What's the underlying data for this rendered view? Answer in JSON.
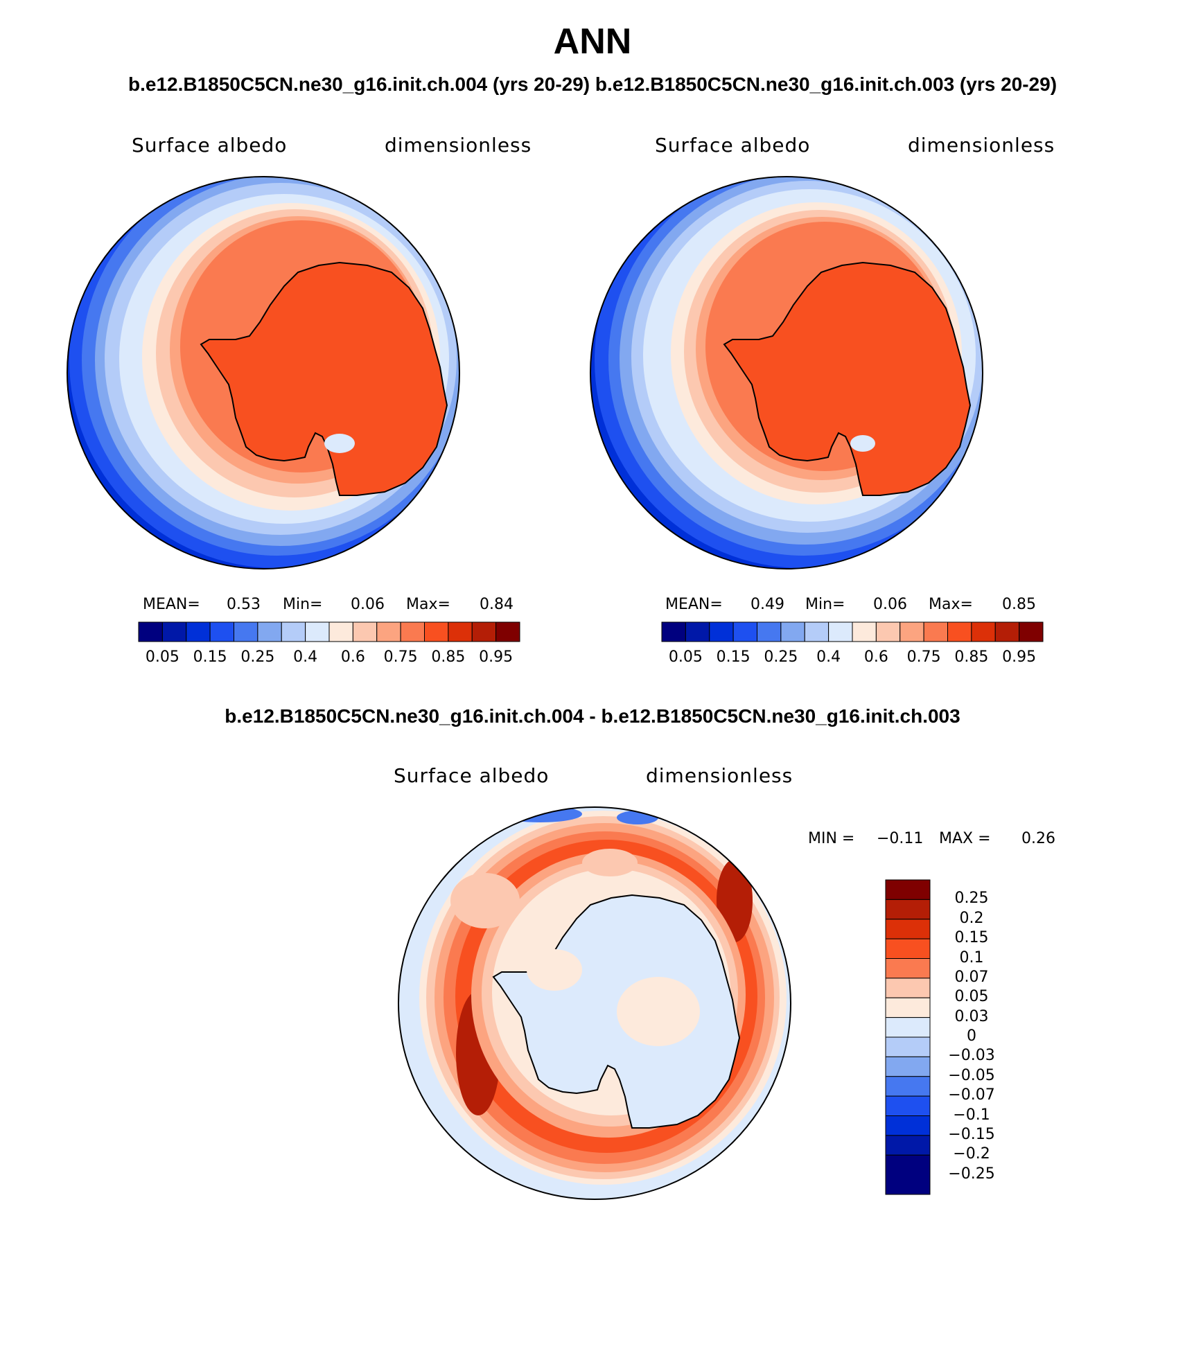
{
  "title": "ANN",
  "subtitle_left": "b.e12.B1850C5CN.ne30_g16.init.ch.004 (yrs 20-29)",
  "subtitle_right": "b.e12.B1850C5CN.ne30_g16.init.ch.003 (yrs 20-29)",
  "diff_title": "b.e12.B1850C5CN.ne30_g16.init.ch.004 - b.e12.B1850C5CN.ne30_g16.init.ch.003",
  "panels": [
    {
      "variable": "Surface albedo",
      "units": "dimensionless",
      "stats": {
        "mean_label": "MEAN=",
        "mean": "0.53",
        "min_label": "Min=",
        "min": "0.06",
        "max_label": "Max=",
        "max": "0.84"
      }
    },
    {
      "variable": "Surface albedo",
      "units": "dimensionless",
      "stats": {
        "mean_label": "MEAN=",
        "mean": "0.49",
        "min_label": "Min=",
        "min": "0.06",
        "max_label": "Max=",
        "max": "0.85"
      }
    },
    {
      "variable": "Surface albedo",
      "units": "dimensionless",
      "stats": {
        "min_label": "MIN =",
        "min": "−0.11",
        "max_label": "MAX =",
        "max": "0.26"
      }
    }
  ],
  "colorbar_main": {
    "colors": [
      "#00007f",
      "#0018a8",
      "#0030d8",
      "#1e50f0",
      "#4678f0",
      "#82a8f0",
      "#b4ccf8",
      "#dceafc",
      "#fdeadc",
      "#fcc8b0",
      "#fca480",
      "#fa7a50",
      "#f85020",
      "#dc3008",
      "#b41e06",
      "#7f0000"
    ],
    "ticks": [
      "0.05",
      "0.15",
      "0.25",
      "0.4",
      "0.6",
      "0.75",
      "0.85",
      "0.95"
    ]
  },
  "colorbar_diff": {
    "colors": [
      "#7f0000",
      "#b41e06",
      "#dc3008",
      "#f85020",
      "#fa7a50",
      "#fcc8b0",
      "#fdeadc",
      "#dceafc",
      "#b4ccf8",
      "#82a8f0",
      "#4678f0",
      "#1e50f0",
      "#0030d8",
      "#0018a8",
      "#00007f"
    ],
    "ticks": [
      "0.25",
      "0.2",
      "0.15",
      "0.1",
      "0.07",
      "0.05",
      "0.03",
      "0",
      "−0.03",
      "−0.05",
      "−0.07",
      "−0.1",
      "−0.15",
      "−0.2",
      "−0.25"
    ]
  }
}
